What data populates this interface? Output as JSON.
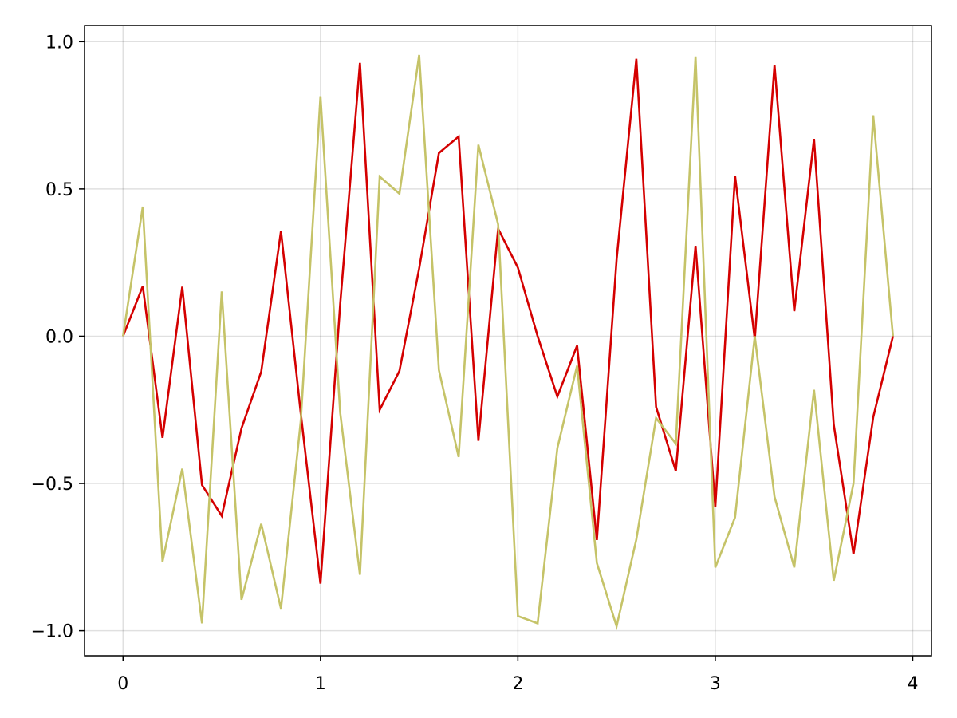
{
  "chart_data": {
    "type": "line",
    "title": "",
    "xlabel": "",
    "ylabel": "",
    "xlim": [
      -0.195,
      4.095
    ],
    "ylim": [
      -1.085,
      1.055
    ],
    "x_ticks": [
      0,
      1,
      2,
      3,
      4
    ],
    "x_tick_labels": [
      "0",
      "1",
      "2",
      "3",
      "4"
    ],
    "y_ticks": [
      -1.0,
      -0.5,
      0.0,
      0.5,
      1.0
    ],
    "y_tick_labels": [
      "−1.0",
      "−0.5",
      "0.0",
      "0.5",
      "1.0"
    ],
    "grid": true,
    "legend": "none",
    "x": [
      0.0,
      0.1,
      0.2,
      0.3,
      0.4,
      0.5,
      0.6,
      0.7,
      0.8,
      0.9,
      1.0,
      1.1,
      1.2,
      1.3,
      1.4,
      1.5,
      1.6,
      1.7,
      1.8,
      1.9,
      2.0,
      2.1,
      2.2,
      2.3,
      2.4,
      2.5,
      2.6,
      2.7,
      2.8,
      2.9,
      3.0,
      3.1,
      3.2,
      3.3,
      3.4,
      3.5,
      3.6,
      3.7,
      3.8,
      3.9
    ],
    "series": [
      {
        "color": "#d40000",
        "values": [
          0.0,
          0.17,
          -0.345,
          0.168,
          -0.505,
          -0.61,
          -0.313,
          -0.12,
          0.357,
          -0.26,
          -0.84,
          0.11,
          0.928,
          -0.25,
          -0.118,
          0.23,
          0.622,
          0.678,
          -0.355,
          0.365,
          0.233,
          0.0,
          -0.205,
          -0.032,
          -0.692,
          0.26,
          0.942,
          -0.24,
          -0.458,
          0.307,
          -0.58,
          0.545,
          -0.01,
          0.921,
          0.085,
          0.67,
          -0.3,
          -0.74,
          -0.275,
          0.0
        ]
      },
      {
        "color": "#c5c368",
        "values": [
          0.0,
          0.44,
          -0.765,
          -0.45,
          -0.975,
          0.152,
          -0.895,
          -0.637,
          -0.925,
          -0.29,
          0.815,
          -0.26,
          -0.81,
          0.542,
          0.484,
          0.955,
          -0.115,
          -0.41,
          0.65,
          0.38,
          -0.95,
          -0.975,
          -0.38,
          -0.1,
          -0.77,
          -0.985,
          -0.69,
          -0.278,
          -0.365,
          0.95,
          -0.785,
          -0.615,
          0.0,
          -0.545,
          -0.785,
          -0.182,
          -0.83,
          -0.5,
          0.75,
          0.0
        ]
      }
    ]
  }
}
